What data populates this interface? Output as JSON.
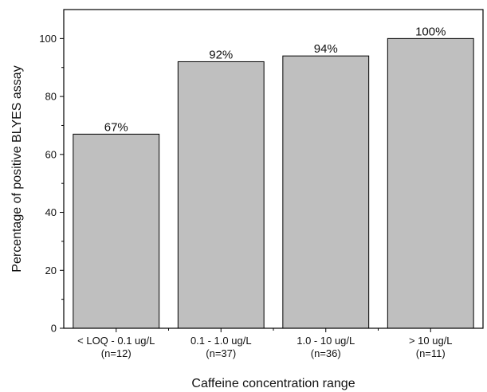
{
  "chart_data": {
    "type": "bar",
    "categories": [
      [
        "< LOQ - 0.1 ug/L",
        "(n=12)"
      ],
      [
        "0.1 - 1.0 ug/L",
        "(n=37)"
      ],
      [
        "1.0 - 10 ug/L",
        "(n=36)"
      ],
      [
        "> 10 ug/L",
        "(n=11)"
      ]
    ],
    "values": [
      67,
      92,
      94,
      100
    ],
    "data_labels": [
      "67%",
      "92%",
      "94%",
      "100%"
    ],
    "xlabel": "Caffeine concentration range",
    "ylabel": "Percentage of positive BLYES assay",
    "ylim": [
      0,
      110
    ],
    "yticks": [
      0,
      20,
      40,
      60,
      80,
      100
    ],
    "bar_color": "#bfbfbf",
    "bar_edge_color": "#000000",
    "grid": false
  }
}
